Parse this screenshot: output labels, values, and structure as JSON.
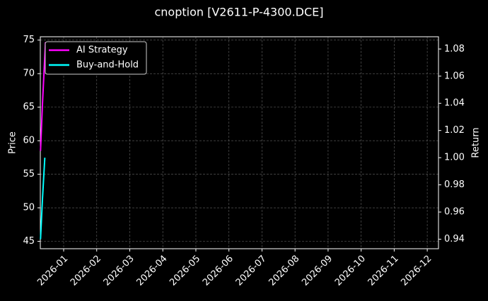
{
  "chart_data": {
    "type": "line",
    "title": "cnoption [V2611-P-4300.DCE]",
    "ylabel": "Price",
    "y2label": "Return",
    "xlim": [
      0.294,
      12.34
    ],
    "xticks": [
      {
        "value": 1,
        "label": "2026-01"
      },
      {
        "value": 2,
        "label": "2026-02"
      },
      {
        "value": 3,
        "label": "2026-03"
      },
      {
        "value": 4,
        "label": "2026-04"
      },
      {
        "value": 5,
        "label": "2026-05"
      },
      {
        "value": 6,
        "label": "2026-06"
      },
      {
        "value": 7,
        "label": "2026-07"
      },
      {
        "value": 8,
        "label": "2026-08"
      },
      {
        "value": 9,
        "label": "2026-09"
      },
      {
        "value": 10,
        "label": "2026-10"
      },
      {
        "value": 11,
        "label": "2026-11"
      },
      {
        "value": 12,
        "label": "2026-12"
      }
    ],
    "ylim": [
      43.9,
      75.5
    ],
    "yticks": [
      45,
      50,
      55,
      60,
      65,
      70,
      75
    ],
    "y2lim": [
      0.933,
      1.089
    ],
    "y2ticks": [
      0.94,
      0.96,
      0.98,
      {
        "value": 1,
        "label": "1.00"
      },
      1.02,
      1.04,
      1.06,
      1.08
    ],
    "grid": true,
    "legend": "upper-left",
    "series": [
      {
        "name": "AI Strategy",
        "color": "#ff00ff",
        "axis": "y2",
        "x": [
          0.3,
          0.36,
          0.45
        ],
        "values": [
          1.005,
          1.04,
          1.085
        ]
      },
      {
        "name": "Buy-and-Hold",
        "color": "#00ffff",
        "axis": "y2",
        "x": [
          0.3,
          0.36,
          0.43
        ],
        "values": [
          0.94,
          0.97,
          1.0
        ]
      }
    ]
  }
}
